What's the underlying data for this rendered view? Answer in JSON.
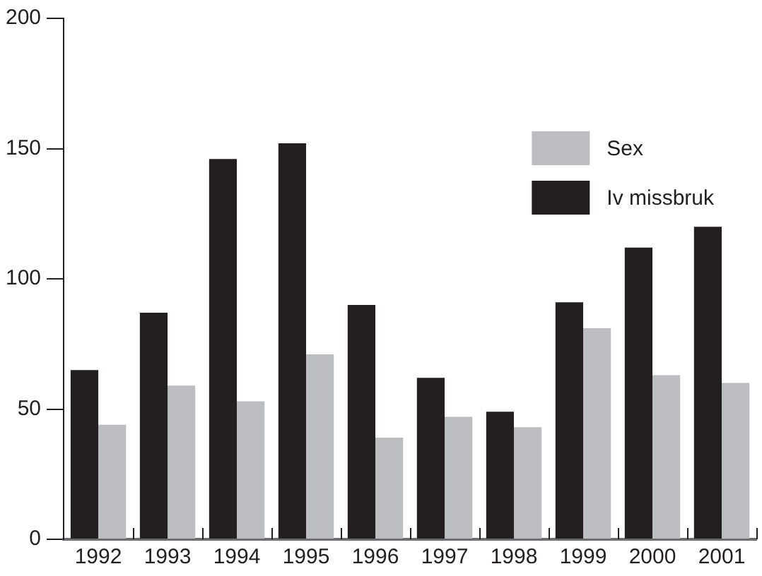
{
  "chart_data": {
    "type": "bar",
    "categories": [
      "1992",
      "1993",
      "1994",
      "1995",
      "1996",
      "1997",
      "1998",
      "1999",
      "2000",
      "2001"
    ],
    "series": [
      {
        "name": "Iv missbruk",
        "color": "#231f20",
        "values": [
          65,
          87,
          146,
          152,
          90,
          62,
          49,
          91,
          112,
          120
        ]
      },
      {
        "name": "Sex",
        "color": "#bcbdc0",
        "values": [
          44,
          59,
          53,
          71,
          39,
          47,
          43,
          81,
          63,
          60
        ]
      }
    ],
    "ylim": [
      0,
      200
    ],
    "yticks": [
      0,
      50,
      100,
      150,
      200
    ],
    "grid": false,
    "legend": "top right"
  }
}
